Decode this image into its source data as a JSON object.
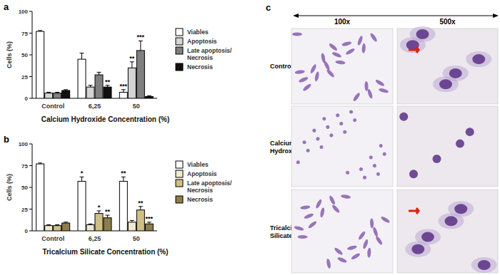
{
  "chart_data": [
    {
      "type": "bar",
      "label": "a",
      "x_label": "Calcium Hydroxide Concentration (%)",
      "y_label": "Cells (%)",
      "categories": [
        "Control",
        "6,25",
        "50"
      ],
      "ylim": [
        0,
        100
      ],
      "yticks": [
        0,
        25,
        50,
        75,
        100
      ],
      "grid": false,
      "legend": "right",
      "series": [
        {
          "name": "Viables",
          "color": "#ffffff",
          "values": [
            77,
            45,
            7
          ],
          "errors": [
            1,
            7,
            3
          ],
          "annotations": [
            null,
            null,
            "***"
          ]
        },
        {
          "name": "Apoptosis",
          "color": "#d4d4d4",
          "values": [
            6,
            13,
            35
          ],
          "errors": [
            1,
            2,
            7
          ],
          "annotations": [
            null,
            null,
            "**"
          ]
        },
        {
          "name": "Late apoptosis/ Necrosis",
          "color": "#7f7f7f",
          "values": [
            6,
            27,
            55
          ],
          "errors": [
            1,
            3,
            11
          ],
          "annotations": [
            null,
            null,
            "***"
          ]
        },
        {
          "name": "Necrosis",
          "color": "#111111",
          "values": [
            9,
            13,
            2
          ],
          "errors": [
            1,
            2,
            1
          ],
          "annotations": [
            null,
            "**",
            null
          ]
        }
      ]
    },
    {
      "type": "bar",
      "label": "b",
      "x_label": "Tricalcium Silicate Concentration (%)",
      "y_label": "Cells (%)",
      "categories": [
        "Control",
        "6,25",
        "50"
      ],
      "ylim": [
        0,
        100
      ],
      "yticks": [
        0,
        25,
        50,
        75,
        100
      ],
      "grid": false,
      "legend": "right",
      "series": [
        {
          "name": "Viables",
          "color": "#ffffff",
          "values": [
            77,
            57,
            57
          ],
          "errors": [
            1,
            5,
            5
          ],
          "annotations": [
            null,
            "*",
            "**"
          ]
        },
        {
          "name": "Apoptosis",
          "color": "#f1ead0",
          "values": [
            6,
            7,
            10
          ],
          "errors": [
            1,
            1,
            2
          ],
          "annotations": [
            null,
            null,
            null
          ]
        },
        {
          "name": "Late apoptosis/ Necrosis",
          "color": "#cdbf86",
          "values": [
            6,
            20,
            24
          ],
          "errors": [
            1,
            3,
            4
          ],
          "annotations": [
            null,
            "*",
            "**"
          ]
        },
        {
          "name": "Necrosis",
          "color": "#8c7d4c",
          "values": [
            9,
            15,
            8
          ],
          "errors": [
            1,
            3,
            2
          ],
          "annotations": [
            null,
            "**",
            "***"
          ]
        }
      ]
    }
  ],
  "images": {
    "label": "c",
    "columns": [
      "100x",
      "500x"
    ],
    "rows": [
      "Control",
      "Calcium Hydroxide",
      "Tricalcium Silicate"
    ]
  }
}
